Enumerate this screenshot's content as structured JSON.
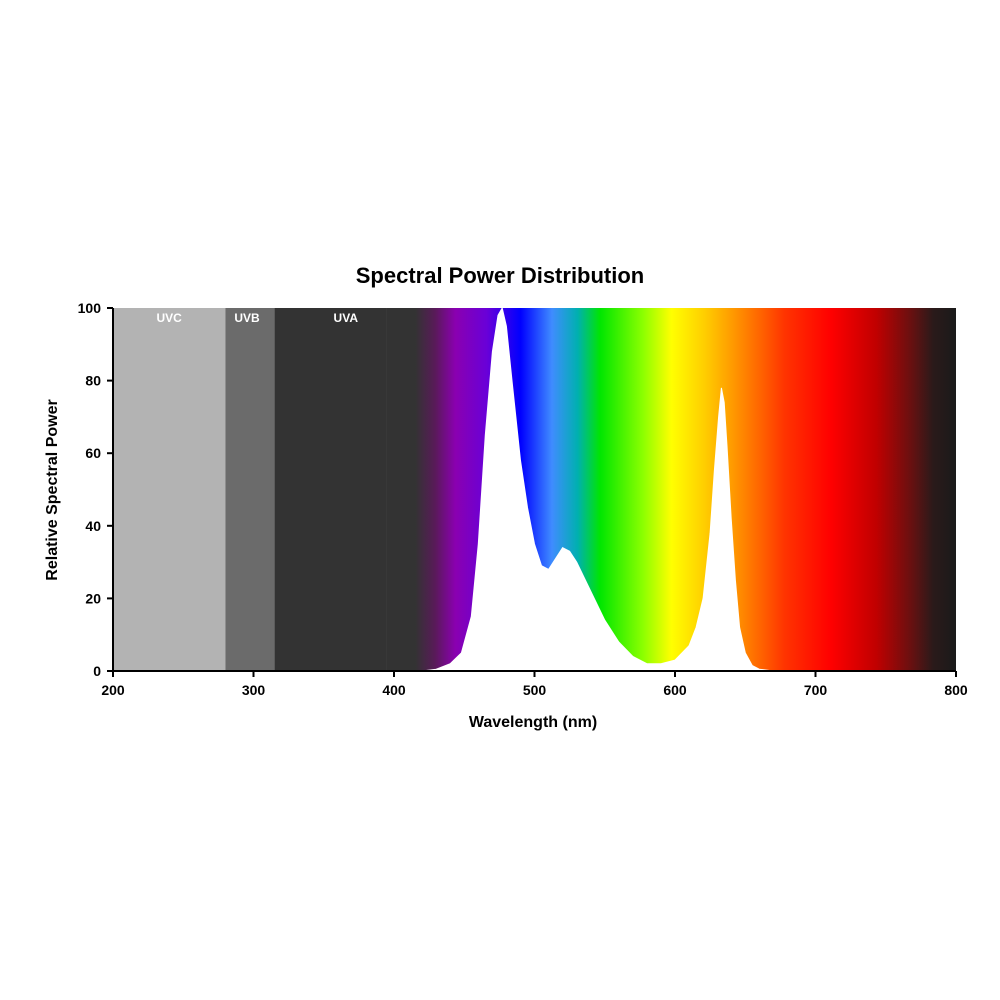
{
  "chart_data": {
    "type": "area",
    "title": "Spectral Power Distribution",
    "xlabel": "Wavelength (nm)",
    "ylabel": "Relative Spectral Power",
    "xlim": [
      200,
      800
    ],
    "ylim": [
      0,
      100
    ],
    "x_ticks": [
      200,
      300,
      400,
      500,
      600,
      700,
      800
    ],
    "y_ticks": [
      0,
      20,
      40,
      60,
      80,
      100
    ],
    "grid": false,
    "uv_bands": [
      {
        "label": "UVC",
        "start": 200,
        "end": 280,
        "color": "#b3b3b3"
      },
      {
        "label": "UVB",
        "start": 280,
        "end": 315,
        "color": "#6b6b6b"
      },
      {
        "label": "UVA",
        "start": 315,
        "end": 395,
        "color": "#333333"
      }
    ],
    "spectrum": {
      "x": [
        420,
        430,
        440,
        448,
        455,
        460,
        465,
        470,
        474,
        477,
        480,
        484,
        490,
        495,
        500,
        505,
        510,
        515,
        520,
        525,
        530,
        540,
        550,
        560,
        570,
        580,
        590,
        600,
        610,
        615,
        620,
        625,
        628,
        631,
        633,
        635,
        637,
        640,
        643,
        646,
        650,
        655,
        660,
        670
      ],
      "y": [
        0,
        0.5,
        2,
        5,
        15,
        35,
        65,
        88,
        98,
        100,
        95,
        80,
        58,
        45,
        35,
        29,
        28,
        31,
        34,
        33,
        30,
        22,
        14,
        8,
        4,
        2,
        2,
        3,
        7,
        12,
        20,
        38,
        55,
        70,
        78,
        74,
        62,
        42,
        25,
        12,
        5,
        1.5,
        0.5,
        0
      ]
    }
  }
}
